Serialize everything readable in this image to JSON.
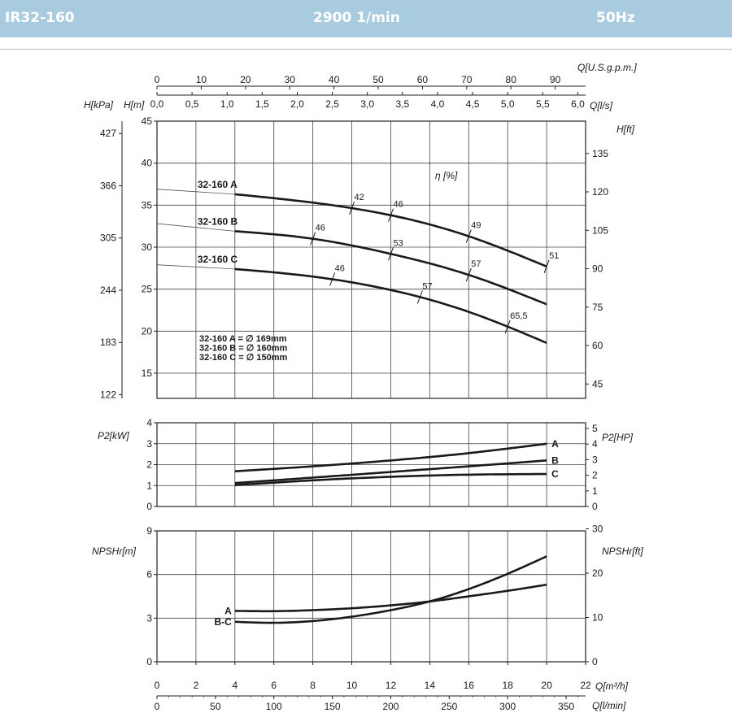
{
  "header": {
    "model": "IR32-160",
    "speed": "2900 1/min",
    "frequency": "50Hz",
    "background_color": "#a9cbe0"
  },
  "chart_data": [
    {
      "type": "line",
      "panel": "head",
      "xlabel": "Q[m³/h]",
      "xlim": [
        0,
        22
      ],
      "ylabel": "H[m]",
      "ylim": [
        12,
        45
      ],
      "y_ticks": [
        15,
        20,
        25,
        30,
        35,
        40,
        45
      ],
      "secondary_y_left": {
        "label": "H[kPa]",
        "ticks": [
          122,
          183,
          244,
          305,
          366,
          427
        ]
      },
      "secondary_y_right": {
        "label": "H[ft]",
        "ticks": [
          45,
          60,
          75,
          90,
          105,
          120,
          135
        ]
      },
      "top_axis_lps": {
        "label": "Q[l/s]",
        "ticks": [
          "0,0",
          "0,5",
          "1,0",
          "1,5",
          "2,0",
          "2,5",
          "3,0",
          "3,5",
          "4,0",
          "4,5",
          "5,0",
          "5,5",
          "6,0"
        ]
      },
      "top_axis_usgpm": {
        "label": "Q[U.S.g.p.m.]",
        "ticks": [
          "0",
          "10",
          "20",
          "30",
          "40",
          "50",
          "60",
          "70",
          "80",
          "90"
        ]
      },
      "efficiency_label": "η [%]",
      "series": [
        {
          "name": "32-160 A",
          "x": [
            4,
            8,
            12,
            16,
            20
          ],
          "y": [
            36.3,
            35.3,
            33.8,
            31.3,
            27.7
          ],
          "efficiency": [
            {
              "x": 10,
              "label": "42"
            },
            {
              "x": 12,
              "label": "46"
            },
            {
              "x": 16,
              "label": "49"
            },
            {
              "x": 20,
              "label": "51"
            }
          ]
        },
        {
          "name": "32-160 B",
          "x": [
            4,
            8,
            12,
            16,
            20
          ],
          "y": [
            31.9,
            31.0,
            29.2,
            26.7,
            23.2
          ],
          "efficiency": [
            {
              "x": 8,
              "label": "46"
            },
            {
              "x": 12,
              "label": "53"
            },
            {
              "x": 16,
              "label": "57"
            }
          ]
        },
        {
          "name": "32-160 C",
          "x": [
            4,
            8,
            12,
            16,
            20
          ],
          "y": [
            27.4,
            26.5,
            24.9,
            22.3,
            18.6
          ],
          "efficiency": [
            {
              "x": 9,
              "label": "46"
            },
            {
              "x": 13.5,
              "label": "57"
            },
            {
              "x": 18,
              "label": "65,5"
            }
          ]
        }
      ],
      "extrapolated_start": [
        36.9,
        32.8,
        27.9
      ],
      "diameter_notes": [
        "32-160 A = ∅ 169mm",
        "32-160 B = ∅ 160mm",
        "32-160 C = ∅ 150mm"
      ]
    },
    {
      "type": "line",
      "panel": "power",
      "xlim": [
        0,
        22
      ],
      "ylabel": "P2[kW]",
      "ylim": [
        0,
        4
      ],
      "y_ticks": [
        0,
        1,
        2,
        3,
        4
      ],
      "secondary_y_right": {
        "label": "P2[HP]",
        "ticks": [
          0,
          1,
          2,
          3,
          4,
          5
        ]
      },
      "series": [
        {
          "name": "A",
          "x": [
            4,
            8,
            12,
            16,
            20
          ],
          "y": [
            1.68,
            1.92,
            2.2,
            2.55,
            3.0
          ]
        },
        {
          "name": "B",
          "x": [
            4,
            8,
            12,
            16,
            20
          ],
          "y": [
            1.12,
            1.38,
            1.65,
            1.92,
            2.2
          ]
        },
        {
          "name": "C",
          "x": [
            4,
            8,
            12,
            16,
            20
          ],
          "y": [
            1.02,
            1.25,
            1.42,
            1.52,
            1.55
          ]
        }
      ]
    },
    {
      "type": "line",
      "panel": "npsh",
      "xlabel": "Q[m³/h]",
      "xlim": [
        0,
        22
      ],
      "x_ticks": [
        "0",
        "2",
        "4",
        "6",
        "8",
        "10",
        "12",
        "14",
        "16",
        "18",
        "20",
        "22"
      ],
      "ylabel": "NPSHr[m]",
      "ylim": [
        0,
        9
      ],
      "y_ticks": [
        0,
        3,
        6,
        9
      ],
      "secondary_y_right": {
        "label": "NPSHr[ft]",
        "ticks": [
          0,
          10,
          20,
          30
        ]
      },
      "bottom_axis_lpm": {
        "label": "Q[l/min]",
        "ticks": [
          "0",
          "50",
          "100",
          "150",
          "200",
          "250",
          "300",
          "350"
        ]
      },
      "series": [
        {
          "name": "A",
          "x": [
            4,
            6,
            8,
            10,
            12,
            14,
            16,
            18,
            20
          ],
          "y": [
            3.5,
            3.48,
            3.55,
            3.68,
            3.88,
            4.15,
            4.5,
            4.88,
            5.3
          ]
        },
        {
          "name": "B-C",
          "x": [
            4,
            6,
            8,
            10,
            12,
            14,
            16,
            18,
            20
          ],
          "y": [
            2.75,
            2.68,
            2.8,
            3.1,
            3.55,
            4.15,
            5.0,
            6.05,
            7.25
          ]
        }
      ]
    }
  ]
}
